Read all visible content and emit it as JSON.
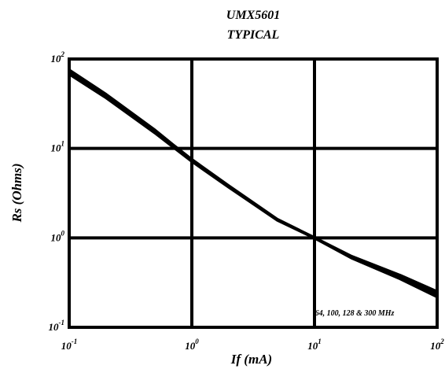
{
  "chart_data": {
    "type": "line",
    "title": "UMX5601",
    "subtitle": "TYPICAL",
    "xlabel": "If (mA)",
    "ylabel": "Rs (Ohms)",
    "x_scale": "log",
    "y_scale": "log",
    "xlim": [
      0.1,
      100
    ],
    "ylim": [
      0.1,
      100
    ],
    "grid": true,
    "x_ticks": [
      {
        "base": "10",
        "exp": "-1",
        "value": 0.1
      },
      {
        "base": "10",
        "exp": "0",
        "value": 1
      },
      {
        "base": "10",
        "exp": "1",
        "value": 10
      },
      {
        "base": "10",
        "exp": "2",
        "value": 100
      }
    ],
    "y_ticks": [
      {
        "base": "10",
        "exp": "-1",
        "value": 0.1
      },
      {
        "base": "10",
        "exp": "0",
        "value": 1
      },
      {
        "base": "10",
        "exp": "1",
        "value": 10
      },
      {
        "base": "10",
        "exp": "2",
        "value": 100
      }
    ],
    "annotation": "64, 100, 128 & 300  MHz",
    "series": [
      {
        "x": [
          0.1,
          0.2,
          0.5,
          0.7,
          1,
          2,
          5,
          10,
          20,
          50,
          100
        ],
        "y": [
          75,
          40,
          16,
          11,
          7.5,
          3.8,
          1.6,
          1.0,
          0.62,
          0.38,
          0.25
        ]
      },
      {
        "x": [
          0.1,
          0.2,
          0.5,
          0.7,
          1,
          2,
          5,
          10,
          20,
          50,
          100
        ],
        "y": [
          68,
          37,
          15,
          10.5,
          7.2,
          3.7,
          1.58,
          1.0,
          0.6,
          0.35,
          0.22
        ]
      }
    ]
  }
}
